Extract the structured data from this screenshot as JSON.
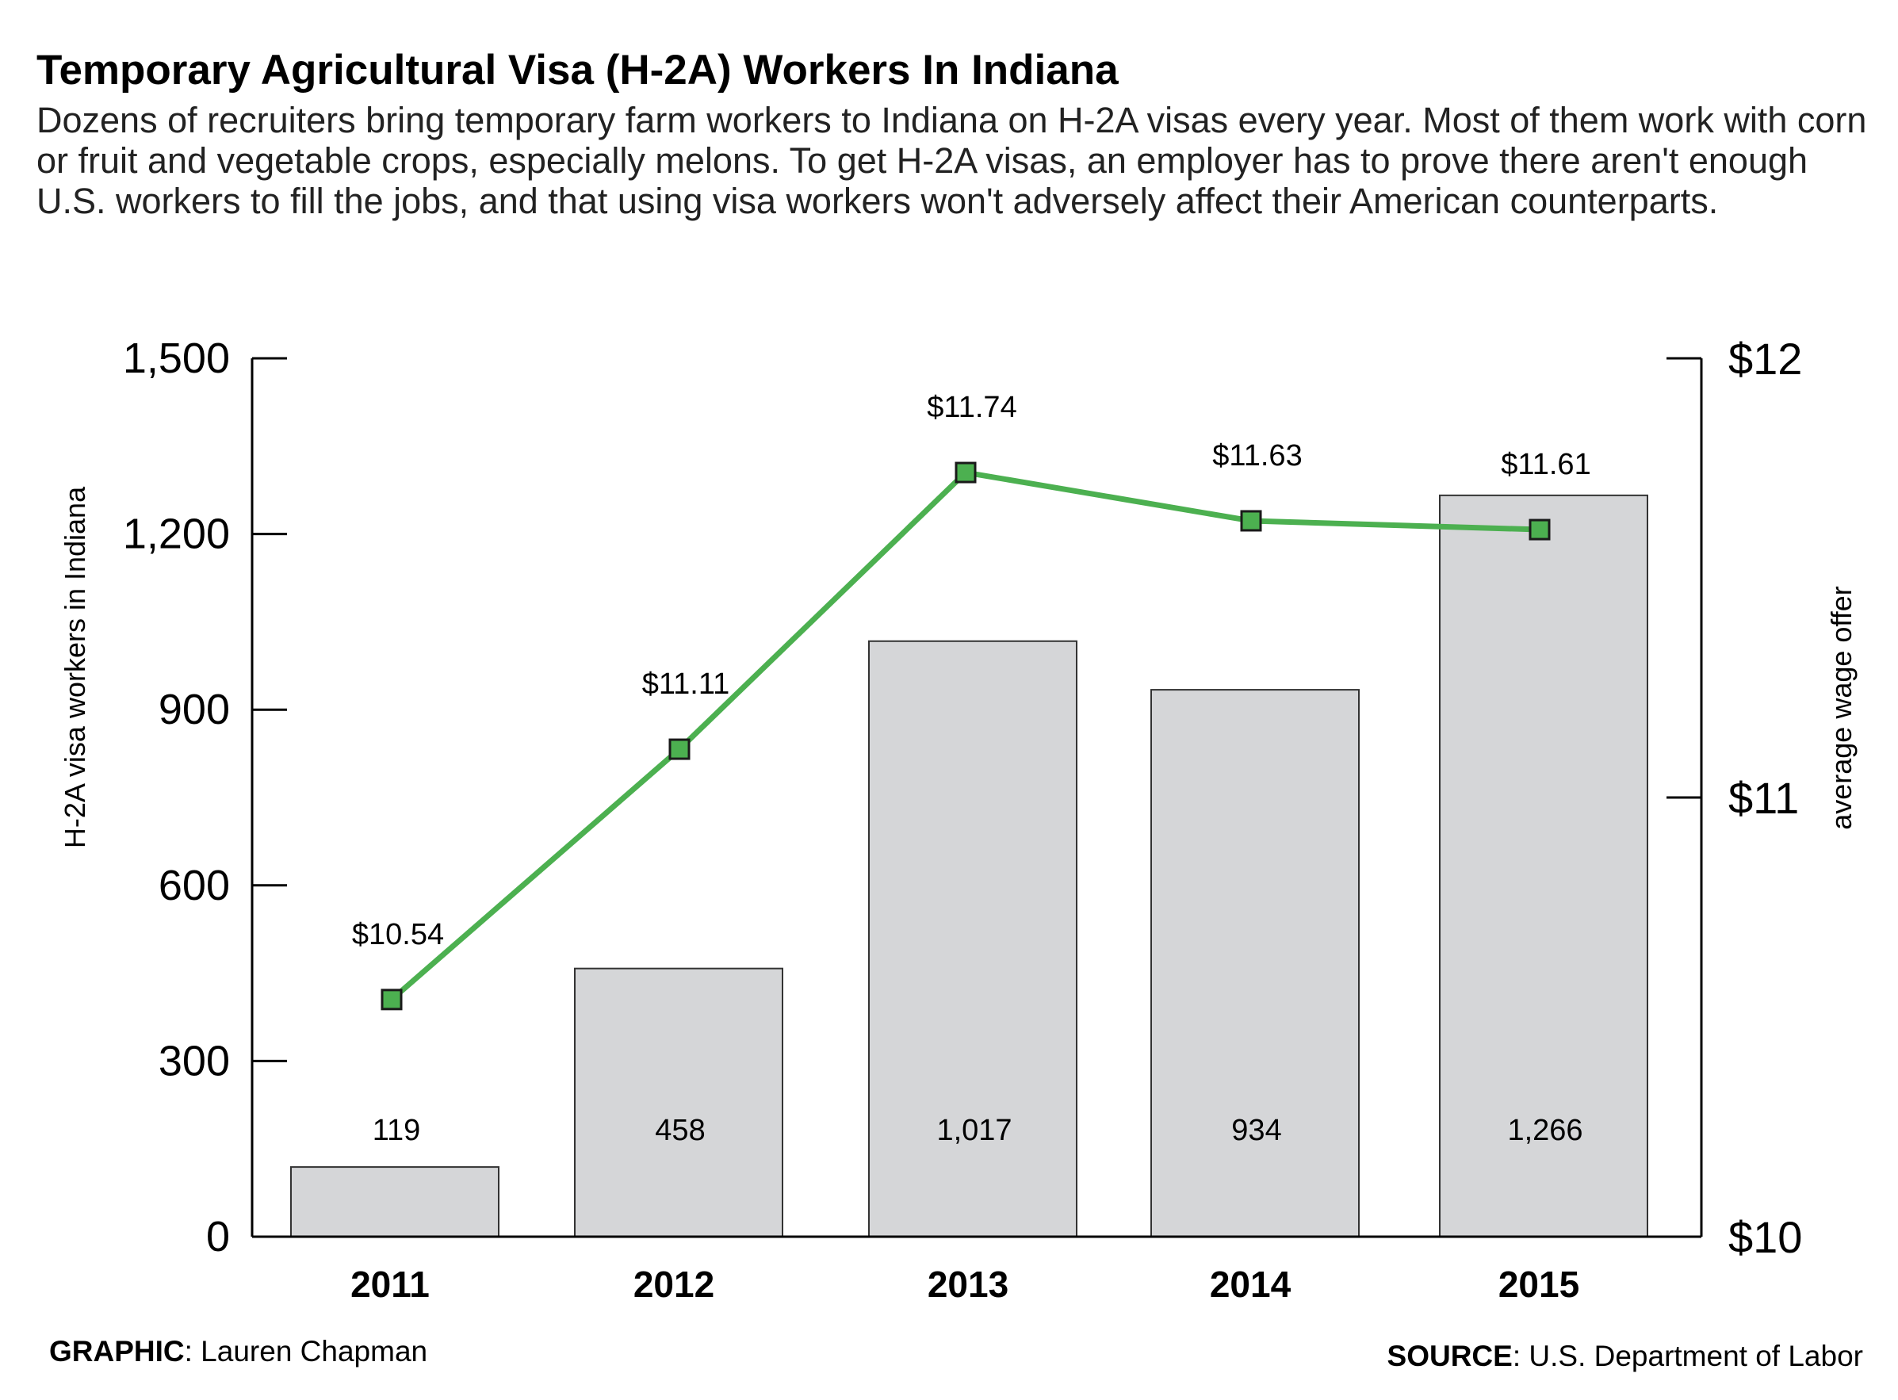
{
  "header": {
    "title": "Temporary Agricultural Visa (H-2A) Workers In Indiana",
    "subtitle": "Dozens of recruiters bring temporary farm workers to Indiana on H-2A visas every year. Most of them work with corn or fruit and vegetable crops, especially melons. To get H-2A visas, an employer has to prove there aren't enough U.S. workers to fill the jobs, and that using visa workers won't adversely affect their American counterparts."
  },
  "footer": {
    "graphic_label": "GRAPHIC",
    "graphic_name": ": Lauren Chapman",
    "source_label": "SOURCE",
    "source_name": ": U.S. Department of Labor"
  },
  "colors": {
    "bar_fill": "#d5d6d8",
    "bar_stroke": "#333333",
    "line": "#4cb050",
    "marker_fill": "#4cb050",
    "marker_stroke": "#1a1a1a",
    "axis": "#000000"
  },
  "chart_data": {
    "type": "bar",
    "categories": [
      "2011",
      "2012",
      "2013",
      "2014",
      "2015"
    ],
    "series": [
      {
        "type": "bar",
        "axis": "left",
        "values": [
          119,
          458,
          1017,
          934,
          1266
        ],
        "value_labels": [
          "119",
          "458",
          "1,017",
          "934",
          "1,266"
        ]
      },
      {
        "type": "line",
        "axis": "right",
        "values": [
          10.54,
          11.11,
          11.74,
          11.63,
          11.61
        ],
        "value_labels": [
          "$10.54",
          "$11.11",
          "$11.74",
          "$11.63",
          "$11.61"
        ]
      }
    ],
    "ylabel": "H-2A visa workers in Indiana",
    "ylim": [
      0,
      1500
    ],
    "yticks": [
      0,
      300,
      600,
      900,
      1200,
      1500
    ],
    "ytick_labels": [
      "0",
      "300",
      "600",
      "900",
      "1,200",
      "1,500"
    ],
    "y2label": "average wage offer",
    "y2lim": [
      10,
      12
    ],
    "y2ticks": [
      10,
      11,
      12
    ],
    "y2tick_labels": [
      "$10",
      "$11",
      "$12"
    ],
    "grid": false
  }
}
